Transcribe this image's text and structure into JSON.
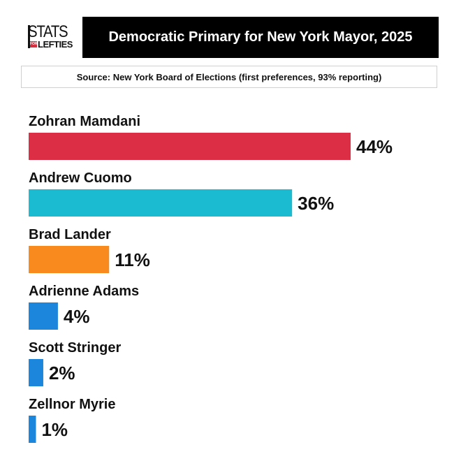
{
  "logo": {
    "top_text": "STATS",
    "for_text": "FOR",
    "bottom_text": "LEFTIES"
  },
  "header": {
    "title": "Democratic Primary for New York Mayor, 2025",
    "source": "Source: New York Board of Elections (first preferences, 93% reporting)"
  },
  "chart_data": {
    "type": "bar",
    "orientation": "horizontal",
    "categories": [
      "Zohran Mamdani",
      "Andrew Cuomo",
      "Brad Lander",
      "Adrienne Adams",
      "Scott Stringer",
      "Zellnor Myrie"
    ],
    "values": [
      44,
      36,
      11,
      4,
      2,
      1
    ],
    "value_labels": [
      "44%",
      "36%",
      "11%",
      "4%",
      "2%",
      "1%"
    ],
    "colors": [
      "#dc2f45",
      "#1bbbd2",
      "#f98b1e",
      "#1b86db",
      "#1b86db",
      "#1b86db"
    ],
    "title": "Democratic Primary for New York Mayor, 2025",
    "xlabel": "",
    "ylabel": "",
    "xlim": [
      0,
      44
    ],
    "grid": false,
    "legend": "none"
  }
}
